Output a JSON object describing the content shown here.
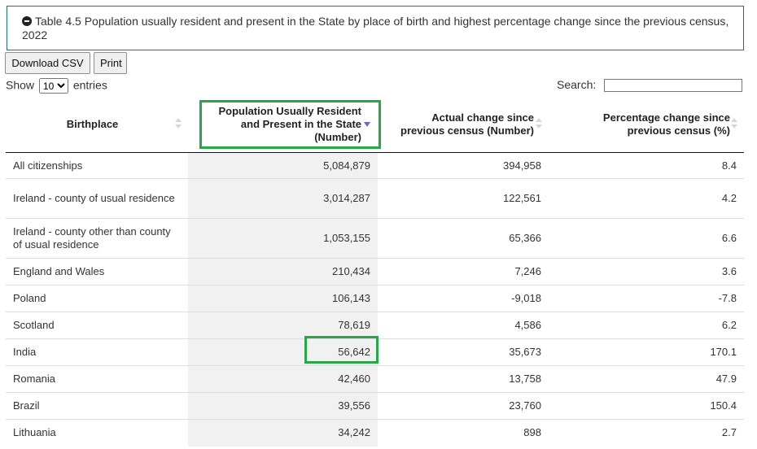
{
  "panel": {
    "title": "Table 4.5 Population usually resident and present in the State by place of birth and highest percentage change since the previous census, 2022"
  },
  "toolbar": {
    "download_label": "Download CSV",
    "print_label": "Print"
  },
  "length": {
    "prefix": "Show",
    "selected": "10",
    "suffix": "entries"
  },
  "search": {
    "label": "Search:",
    "value": ""
  },
  "table": {
    "headers": [
      {
        "label": "Birthplace",
        "sort": "none"
      },
      {
        "label": "Population Usually Resident and Present in the State (Number)",
        "sort": "descending"
      },
      {
        "label": "Actual change since previous census (Number)",
        "sort": "none"
      },
      {
        "label": "Percentage change since previous census (%)",
        "sort": "none"
      }
    ],
    "rows": [
      [
        "All citizenships",
        "5,084,879",
        "394,958",
        "8.4"
      ],
      [
        "Ireland - county of usual residence",
        "3,014,287",
        "122,561",
        "4.2"
      ],
      [
        "Ireland - county other than county of usual residence",
        "1,053,155",
        "65,366",
        "6.6"
      ],
      [
        "England and Wales",
        "210,434",
        "7,246",
        "3.6"
      ],
      [
        "Poland",
        "106,143",
        "-9,018",
        "-7.8"
      ],
      [
        "Scotland",
        "78,619",
        "4,586",
        "6.2"
      ],
      [
        "India",
        "56,642",
        "35,673",
        "170.1"
      ],
      [
        "Romania",
        "42,460",
        "13,758",
        "47.9"
      ],
      [
        "Brazil",
        "39,556",
        "23,760",
        "150.4"
      ],
      [
        "Lithuania",
        "34,242",
        "898",
        "2.7"
      ]
    ]
  },
  "highlights": {
    "color": "#28a745",
    "sorted_column_bg": "#f1f1f1"
  }
}
